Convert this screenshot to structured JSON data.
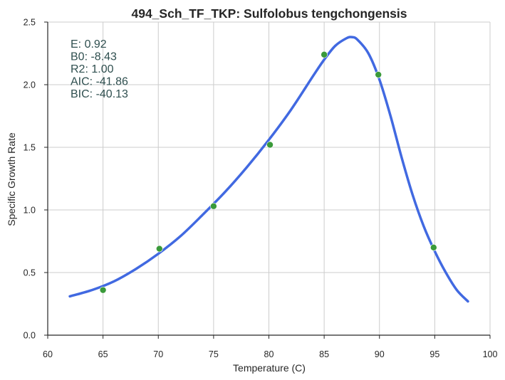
{
  "chart_data": {
    "type": "scatter",
    "title": "494_Sch_TF_TKP: Sulfolobus tengchongensis",
    "xlabel": "Temperature (C)",
    "ylabel": "Specific Growth Rate",
    "xlim": [
      60,
      100
    ],
    "ylim": [
      0.0,
      2.5
    ],
    "x_ticks": [
      "60",
      "65",
      "70",
      "75",
      "80",
      "85",
      "90",
      "95",
      "100"
    ],
    "y_ticks": [
      "0.0",
      "0.5",
      "1.0",
      "1.5",
      "2.0",
      "2.5"
    ],
    "grid": true,
    "annotations": [
      "E:  0.92",
      "B0:  -8.43",
      "R2:  1.00",
      "AIC: -41.86",
      "BIC: -40.13"
    ],
    "series": [
      {
        "kind": "points",
        "color": "#3a9a3a",
        "points": [
          {
            "x": 65,
            "y": 0.36
          },
          {
            "x": 70.1,
            "y": 0.69
          },
          {
            "x": 75,
            "y": 1.03
          },
          {
            "x": 80.1,
            "y": 1.52
          },
          {
            "x": 85,
            "y": 2.24
          },
          {
            "x": 89.9,
            "y": 2.08
          },
          {
            "x": 94.9,
            "y": 0.7
          }
        ]
      },
      {
        "kind": "fit-line",
        "color": "#4169e1",
        "points": [
          {
            "x": 62,
            "y": 0.31
          },
          {
            "x": 64,
            "y": 0.36
          },
          {
            "x": 66,
            "y": 0.43
          },
          {
            "x": 68,
            "y": 0.53
          },
          {
            "x": 70,
            "y": 0.65
          },
          {
            "x": 72,
            "y": 0.79
          },
          {
            "x": 74,
            "y": 0.96
          },
          {
            "x": 76,
            "y": 1.14
          },
          {
            "x": 78,
            "y": 1.34
          },
          {
            "x": 80,
            "y": 1.56
          },
          {
            "x": 82,
            "y": 1.8
          },
          {
            "x": 84,
            "y": 2.07
          },
          {
            "x": 85,
            "y": 2.2
          },
          {
            "x": 86,
            "y": 2.31
          },
          {
            "x": 87,
            "y": 2.37
          },
          {
            "x": 87.5,
            "y": 2.38
          },
          {
            "x": 88,
            "y": 2.36
          },
          {
            "x": 89,
            "y": 2.25
          },
          {
            "x": 90,
            "y": 2.04
          },
          {
            "x": 91,
            "y": 1.75
          },
          {
            "x": 92,
            "y": 1.42
          },
          {
            "x": 93,
            "y": 1.12
          },
          {
            "x": 94,
            "y": 0.87
          },
          {
            "x": 95,
            "y": 0.67
          },
          {
            "x": 96,
            "y": 0.5
          },
          {
            "x": 97,
            "y": 0.36
          },
          {
            "x": 98,
            "y": 0.27
          }
        ]
      }
    ]
  }
}
